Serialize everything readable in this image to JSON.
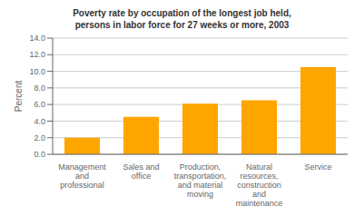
{
  "chart_data": {
    "type": "bar",
    "title": "Poverty rate by occupation of the longest job held,\npersons in labor force for 27 weeks or more, 2003",
    "ylabel": "Percent",
    "categories": [
      "Management\nand\nprofessional",
      "Sales and\noffice",
      "Production,\ntransportation,\nand material\nmoving",
      "Natural\nresources,\nconstruction\nand\nmaintenance",
      "Service"
    ],
    "values": [
      2.0,
      4.5,
      6.1,
      6.5,
      10.5
    ],
    "color": "#FFA500",
    "ylim": [
      0,
      14.0
    ],
    "yticks": [
      {
        "value": 0,
        "label": "0.0"
      },
      {
        "value": 2,
        "label": "2.0"
      },
      {
        "value": 4,
        "label": "4.0"
      },
      {
        "value": 6,
        "label": "6.0"
      },
      {
        "value": 8,
        "label": "8.0"
      },
      {
        "value": 10,
        "label": "10.0"
      },
      {
        "value": 12,
        "label": "12.0"
      },
      {
        "value": 14,
        "label": "14.0"
      }
    ],
    "grid": true
  }
}
